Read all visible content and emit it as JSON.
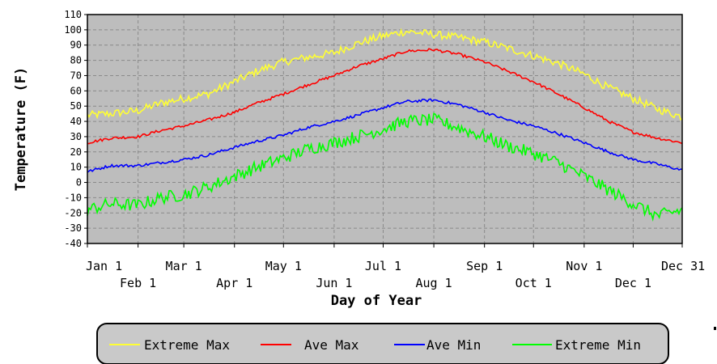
{
  "chart_data": {
    "type": "line",
    "title": "",
    "xlabel": "Day of Year",
    "ylabel": "Temperature (F)",
    "xlim": [
      1,
      365
    ],
    "ylim": [
      -40,
      110
    ],
    "y_ticks": [
      110,
      100,
      90,
      80,
      70,
      60,
      50,
      40,
      30,
      20,
      10,
      0,
      -10,
      -20,
      -30,
      -40
    ],
    "x_ticks": [
      {
        "day": 1,
        "label": "Jan 1",
        "row": 0
      },
      {
        "day": 32,
        "label": "Feb 1",
        "row": 1
      },
      {
        "day": 60,
        "label": "Mar 1",
        "row": 0
      },
      {
        "day": 91,
        "label": "Apr 1",
        "row": 1
      },
      {
        "day": 121,
        "label": "May 1",
        "row": 0
      },
      {
        "day": 152,
        "label": "Jun 1",
        "row": 1
      },
      {
        "day": 182,
        "label": "Jul 1",
        "row": 0
      },
      {
        "day": 213,
        "label": "Aug 1",
        "row": 1
      },
      {
        "day": 244,
        "label": "Sep 1",
        "row": 0
      },
      {
        "day": 274,
        "label": "Oct 1",
        "row": 1
      },
      {
        "day": 305,
        "label": "Nov 1",
        "row": 0
      },
      {
        "day": 335,
        "label": "Dec 1",
        "row": 1
      },
      {
        "day": 365,
        "label": "Dec 31",
        "row": 0
      }
    ],
    "grid": true,
    "legend_position": "bottom",
    "background_color": "#bdbdbd",
    "x": [
      1,
      15,
      32,
      46,
      60,
      75,
      91,
      105,
      121,
      136,
      152,
      166,
      182,
      196,
      213,
      228,
      244,
      258,
      274,
      289,
      305,
      320,
      335,
      350,
      365
    ],
    "series": [
      {
        "name": "Extreme Max",
        "color": "#ffff33",
        "values": [
          44,
          45,
          47,
          52,
          55,
          58,
          66,
          73,
          79,
          82,
          85,
          91,
          96,
          99,
          97,
          95,
          92,
          88,
          83,
          78,
          71,
          62,
          55,
          48,
          43
        ]
      },
      {
        "name": "Ave Max",
        "color": "#ff0000",
        "values": [
          26,
          29,
          30,
          34,
          37,
          41,
          46,
          52,
          58,
          64,
          70,
          76,
          81,
          86,
          87,
          84,
          79,
          73,
          66,
          58,
          49,
          40,
          33,
          29,
          26
        ]
      },
      {
        "name": "Ave Min",
        "color": "#0000ff",
        "values": [
          7,
          11,
          11,
          13,
          15,
          18,
          23,
          27,
          31,
          36,
          40,
          44,
          49,
          53,
          54,
          51,
          46,
          41,
          37,
          32,
          26,
          20,
          15,
          12,
          8
        ]
      },
      {
        "name": "Extreme Min",
        "color": "#00ff00",
        "values": [
          -18,
          -14,
          -15,
          -10,
          -8,
          -3,
          4,
          10,
          16,
          22,
          26,
          30,
          35,
          40,
          41,
          36,
          30,
          24,
          19,
          13,
          4,
          -5,
          -14,
          -22,
          -18
        ]
      }
    ]
  }
}
